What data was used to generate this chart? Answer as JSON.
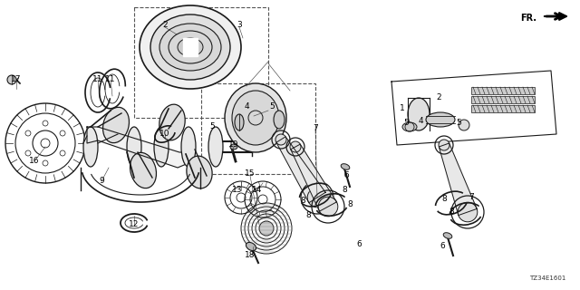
{
  "bg_color": "#ffffff",
  "line_color": "#1a1a1a",
  "code_text": "TZ34E1601",
  "figsize": [
    6.4,
    3.2
  ],
  "dpi": 100,
  "labels": [
    [
      "17",
      18,
      88
    ],
    [
      "16",
      38,
      178
    ],
    [
      "11",
      108,
      88
    ],
    [
      "11",
      122,
      88
    ],
    [
      "9",
      112,
      200
    ],
    [
      "10",
      182,
      148
    ],
    [
      "12",
      148,
      248
    ],
    [
      "2",
      182,
      28
    ],
    [
      "3",
      264,
      28
    ],
    [
      "4",
      272,
      118
    ],
    [
      "5",
      234,
      140
    ],
    [
      "5",
      300,
      118
    ],
    [
      "19",
      258,
      160
    ],
    [
      "13",
      262,
      210
    ],
    [
      "14",
      284,
      210
    ],
    [
      "15",
      276,
      192
    ],
    [
      "18",
      276,
      282
    ],
    [
      "7",
      348,
      142
    ],
    [
      "8",
      334,
      222
    ],
    [
      "8",
      340,
      238
    ],
    [
      "8",
      380,
      210
    ],
    [
      "8",
      386,
      226
    ],
    [
      "6",
      382,
      194
    ],
    [
      "6",
      396,
      270
    ],
    [
      "1",
      444,
      120
    ],
    [
      "5",
      448,
      136
    ],
    [
      "4",
      464,
      134
    ],
    [
      "2",
      484,
      108
    ],
    [
      "5",
      506,
      136
    ],
    [
      "7",
      520,
      218
    ],
    [
      "8",
      490,
      220
    ],
    [
      "8",
      498,
      234
    ],
    [
      "6",
      488,
      272
    ]
  ]
}
